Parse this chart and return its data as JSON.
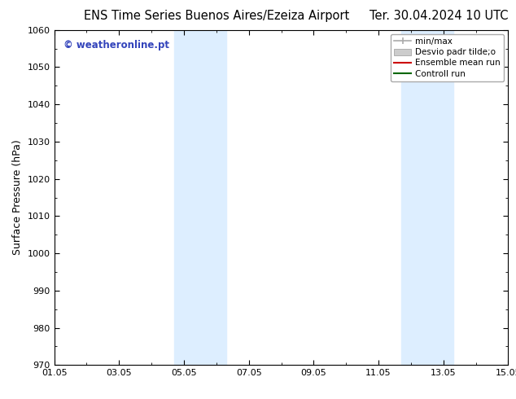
{
  "title_left": "ENS Time Series Buenos Aires/Ezeiza Airport",
  "title_right": "Ter. 30.04.2024 10 UTC",
  "ylabel": "Surface Pressure (hPa)",
  "ylim": [
    970,
    1060
  ],
  "yticks": [
    970,
    980,
    990,
    1000,
    1010,
    1020,
    1030,
    1040,
    1050,
    1060
  ],
  "xlim": [
    0,
    14
  ],
  "xtick_labels": [
    "01.05",
    "03.05",
    "05.05",
    "07.05",
    "09.05",
    "11.05",
    "13.05",
    "15.05"
  ],
  "xtick_positions": [
    0,
    2,
    4,
    6,
    8,
    10,
    12,
    14
  ],
  "shaded_regions": [
    {
      "x_start": 3.7,
      "x_end": 5.3,
      "color": "#ddeeff"
    },
    {
      "x_start": 10.7,
      "x_end": 12.3,
      "color": "#ddeeff"
    }
  ],
  "watermark_text": "© weatheronline.pt",
  "watermark_color": "#3344bb",
  "legend_labels": [
    "min/max",
    "Desvio padr tilde;o",
    "Ensemble mean run",
    "Controll run"
  ],
  "legend_colors": [
    "#aaaaaa",
    "#cccccc",
    "#cc0000",
    "#006600"
  ],
  "legend_styles": [
    "line",
    "patch",
    "line",
    "line"
  ],
  "bg_color": "#ffffff",
  "plot_bg_color": "#ffffff",
  "title_fontsize": 10.5,
  "ylabel_fontsize": 9,
  "tick_fontsize": 8,
  "legend_fontsize": 7.5
}
